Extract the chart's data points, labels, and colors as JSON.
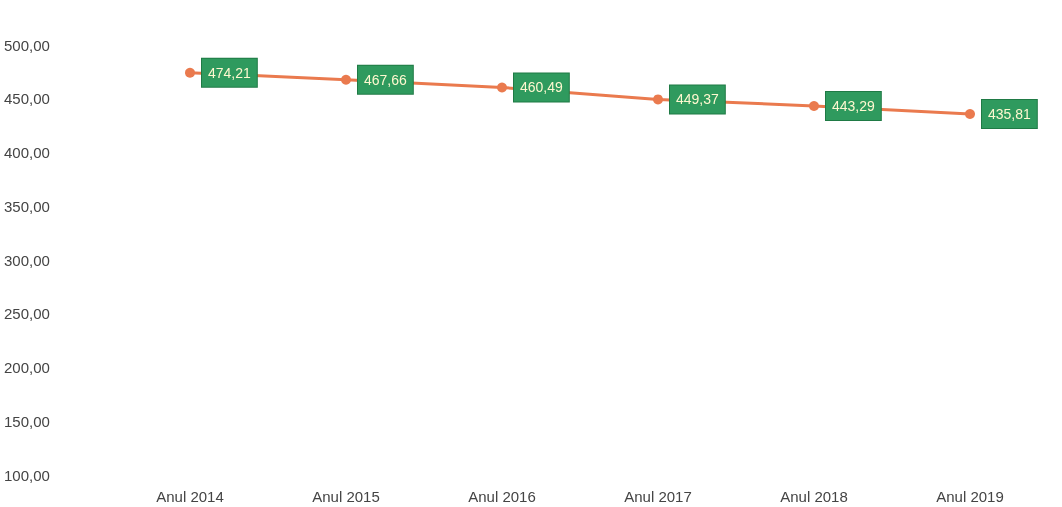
{
  "chart_data": {
    "type": "line",
    "categories": [
      "Anul 2014",
      "Anul 2015",
      "Anul 2016",
      "Anul 2017",
      "Anul 2018",
      "Anul 2019"
    ],
    "series": [
      {
        "color": "#ea7a4e",
        "values": [
          474.21,
          467.66,
          460.49,
          449.37,
          443.29,
          435.81
        ],
        "value_labels": [
          "474,21",
          "467,66",
          "460,49",
          "449,37",
          "443,29",
          "435,81"
        ]
      }
    ],
    "ylim": [
      100,
      500
    ],
    "yticks": [
      {
        "value": 100,
        "label": "100,00"
      },
      {
        "value": 150,
        "label": "150,00"
      },
      {
        "value": 200,
        "label": "200,00"
      },
      {
        "value": 250,
        "label": "250,00"
      },
      {
        "value": 300,
        "label": "300,00"
      },
      {
        "value": 350,
        "label": "350,00"
      },
      {
        "value": 400,
        "label": "400,00"
      },
      {
        "value": 450,
        "label": "450,00"
      },
      {
        "value": 500,
        "label": "500,00"
      }
    ],
    "grid": false,
    "marker": "circle",
    "line_style": "solid"
  }
}
